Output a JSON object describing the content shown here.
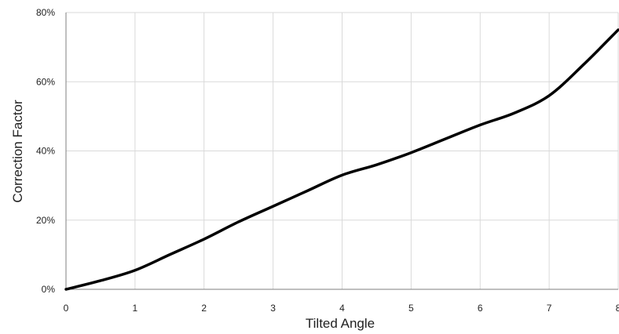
{
  "chart_data": {
    "type": "line",
    "title": "",
    "xlabel": "Tilted Angle",
    "ylabel": "Correction Factor",
    "xlim": [
      0,
      8
    ],
    "ylim": [
      0,
      80
    ],
    "grid": true,
    "x_ticks": [
      "0",
      "1",
      "2",
      "3",
      "4",
      "5",
      "6",
      "7",
      "8"
    ],
    "y_ticks": [
      "0%",
      "20%",
      "40%",
      "60%",
      "80%"
    ],
    "series": [
      {
        "name": "",
        "color": "#000000",
        "x": [
          0,
          0.5,
          1,
          1.5,
          2,
          2.5,
          3,
          3.5,
          4,
          4.5,
          5,
          5.5,
          6,
          6.5,
          7,
          7.5,
          8
        ],
        "y": [
          0,
          2.5,
          5.5,
          10,
          14.5,
          19.5,
          24,
          28.5,
          33,
          36,
          39.5,
          43.5,
          47.5,
          51,
          56,
          65,
          75
        ]
      }
    ]
  }
}
